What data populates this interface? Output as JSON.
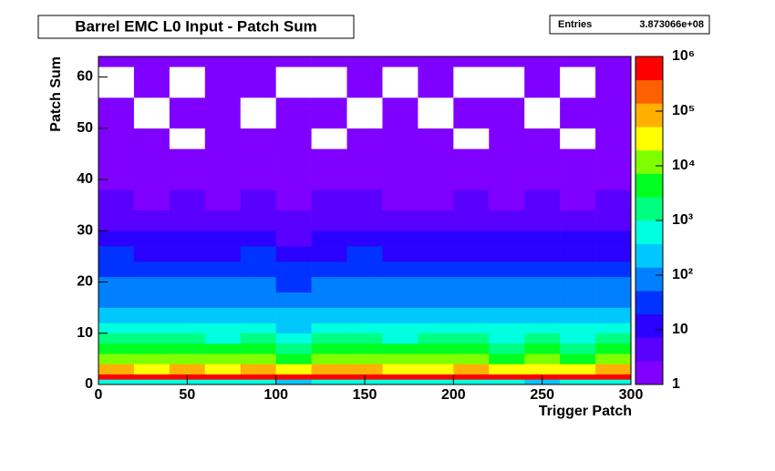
{
  "chart_data": {
    "type": "heatmap",
    "title": "Barrel EMC L0 Input - Patch Sum",
    "stats_label": "Entries",
    "stats_value": "3.873066e+08",
    "xlabel": "Trigger Patch",
    "ylabel": "Patch Sum",
    "xbins": [
      0,
      20,
      40,
      60,
      80,
      100,
      120,
      140,
      160,
      180,
      200,
      220,
      240,
      260,
      280,
      300
    ],
    "ybins": [
      0,
      1,
      2,
      4,
      6,
      8,
      10,
      12,
      15,
      18,
      21,
      24,
      27,
      30,
      34,
      38,
      42,
      46,
      50,
      56,
      62,
      64
    ],
    "z": [
      [
        600,
        400,
        700,
        500,
        800,
        300,
        600,
        500,
        400,
        700,
        500,
        600,
        300,
        500,
        400
      ],
      [
        900000,
        850000,
        800000,
        880000,
        820000,
        700000,
        900000,
        860000,
        840000,
        800000,
        780000,
        850000,
        600000,
        880000,
        820000
      ],
      [
        60000,
        50000,
        55000,
        45000,
        60000,
        30000,
        52000,
        58000,
        50000,
        47000,
        55000,
        40000,
        50000,
        30000,
        52000
      ],
      [
        9000,
        8000,
        8500,
        7500,
        9000,
        5000,
        8200,
        8800,
        8000,
        7800,
        8500,
        7000,
        8000,
        6000,
        8200
      ],
      [
        3200,
        3000,
        3100,
        2800,
        3300,
        2000,
        3000,
        3200,
        2900,
        3000,
        3100,
        2600,
        3000,
        2400,
        3100
      ],
      [
        1100,
        1000,
        1050,
        950,
        1150,
        700,
        1000,
        1100,
        980,
        1000,
        1050,
        900,
        1000,
        800,
        1050
      ],
      [
        520,
        480,
        500,
        460,
        540,
        350,
        500,
        520,
        470,
        490,
        510,
        430,
        480,
        400,
        500
      ],
      [
        260,
        240,
        250,
        230,
        270,
        180,
        250,
        260,
        240,
        245,
        255,
        220,
        240,
        200,
        250
      ],
      [
        130,
        120,
        125,
        115,
        135,
        90,
        125,
        130,
        120,
        122,
        128,
        110,
        120,
        100,
        125
      ],
      [
        70,
        65,
        68,
        62,
        72,
        50,
        66,
        70,
        64,
        65,
        68,
        60,
        64,
        55,
        66
      ],
      [
        40,
        36,
        38,
        34,
        42,
        28,
        37,
        40,
        35,
        36,
        38,
        33,
        36,
        30,
        37
      ],
      [
        20,
        18,
        19,
        17,
        21,
        14,
        18,
        20,
        18,
        18,
        19,
        16,
        18,
        15,
        19
      ],
      [
        10,
        9,
        10,
        8,
        11,
        7,
        9,
        10,
        9,
        9,
        10,
        8,
        9,
        8,
        10
      ],
      [
        5,
        4,
        5,
        4,
        5,
        3,
        4,
        5,
        4,
        4,
        5,
        4,
        4,
        3,
        5
      ],
      [
        3,
        2,
        3,
        2,
        3,
        2,
        3,
        3,
        2,
        2,
        3,
        2,
        3,
        2,
        3
      ],
      [
        2,
        1,
        2,
        1,
        2,
        1,
        2,
        2,
        1,
        1,
        2,
        1,
        2,
        1,
        2
      ],
      [
        1,
        1,
        1,
        1,
        2,
        1,
        1,
        1,
        1,
        1,
        1,
        1,
        1,
        1,
        1
      ],
      [
        1,
        1,
        0,
        1,
        1,
        1,
        0,
        1,
        1,
        1,
        0,
        1,
        1,
        0,
        1
      ],
      [
        1,
        0,
        1,
        1,
        0,
        1,
        1,
        0,
        1,
        0,
        1,
        1,
        0,
        1,
        1
      ],
      [
        0,
        1,
        0,
        1,
        1,
        0,
        0,
        1,
        0,
        1,
        0,
        0,
        1,
        0,
        1
      ],
      [
        1,
        1,
        1,
        1,
        1,
        1,
        1,
        1,
        1,
        1,
        1,
        1,
        1,
        1,
        1
      ]
    ],
    "xlim": [
      0,
      300
    ],
    "ylim": [
      0,
      64
    ],
    "xticks": [
      0,
      50,
      100,
      150,
      200,
      250,
      300
    ],
    "yticks": [
      0,
      10,
      20,
      30,
      40,
      50,
      60
    ],
    "zlim": [
      1,
      1000000
    ],
    "zlog": true,
    "zticks": [
      1,
      10,
      {
        "value": 100,
        "label": "10²"
      },
      {
        "value": 1000,
        "label": "10³"
      },
      {
        "value": 10000,
        "label": "10⁴"
      },
      {
        "value": 100000,
        "label": "10⁵"
      },
      {
        "value": 1000000,
        "label": "10⁶"
      }
    ],
    "palette": [
      "#7f00ff",
      "#5a00ff",
      "#2a00ff",
      "#0033ff",
      "#0080ff",
      "#00c8ff",
      "#00ffe0",
      "#00ff80",
      "#00ff20",
      "#80ff00",
      "#ffff00",
      "#ffb000",
      "#ff6000",
      "#ff0000"
    ]
  }
}
